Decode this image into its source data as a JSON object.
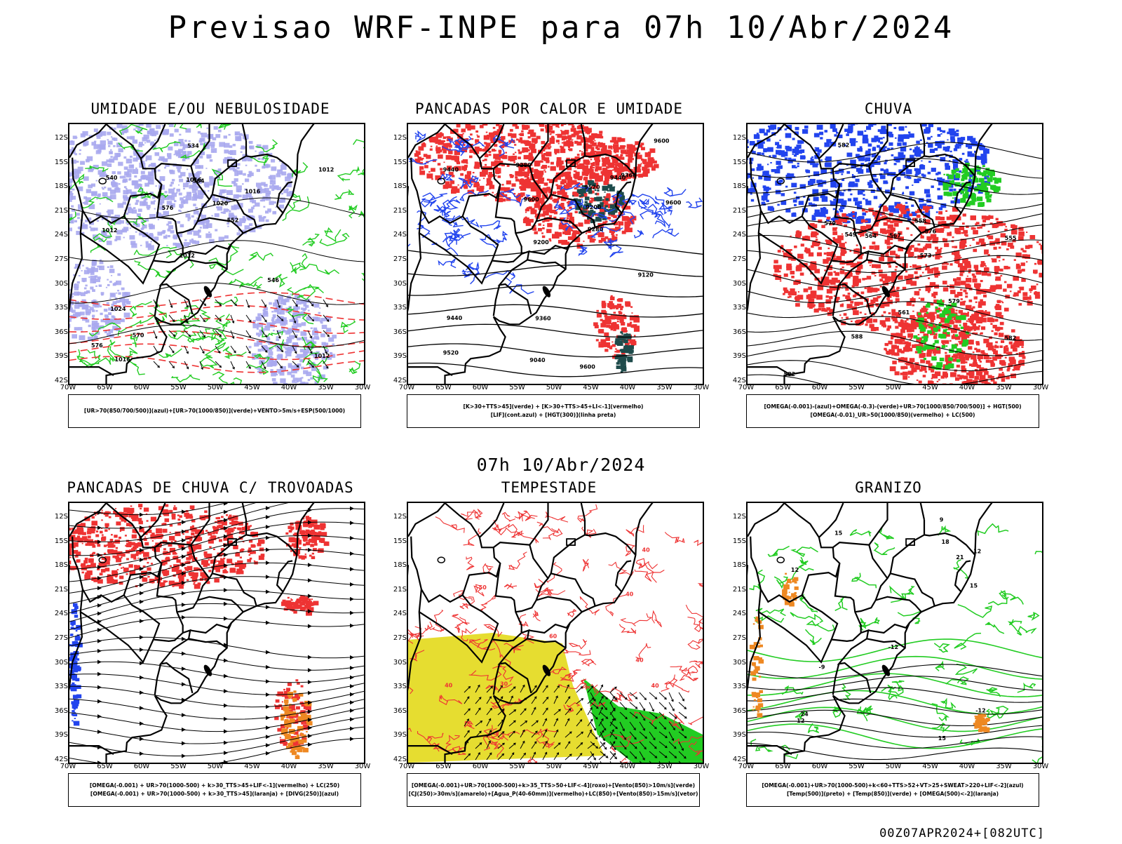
{
  "title": "Previsao WRF-INPE  para 07h 10/Abr/2024",
  "mid_date": "07h 10/Abr/2024",
  "footer": "00Z07APR2024+[082UTC]",
  "axes": {
    "lat_labels": [
      "12S",
      "15S",
      "18S",
      "21S",
      "24S",
      "27S",
      "30S",
      "33S",
      "36S",
      "39S",
      "42S"
    ],
    "lon_labels": [
      "70W",
      "65W",
      "60W",
      "55W",
      "50W",
      "45W",
      "40W",
      "35W",
      "30W"
    ]
  },
  "colors": {
    "blue_shade": "#a9a9ee",
    "green": "#22cc22",
    "red": "#ee3333",
    "yellow": "#e6dd30",
    "dark_teal": "#1e4b4b",
    "orange": "#ee8822",
    "purple": "#cc22cc",
    "blue": "#2244ee"
  },
  "panels": [
    {
      "title": "UMIDADE E/OU NEBULOSIDADE",
      "legend": [
        "[UR>70(850/700/500)](azul)+[UR>70(1000/850)](verde)+VENTO>5m/s+ESP(500/1000)"
      ],
      "contour_labels": [
        "1012",
        "1012",
        "1012",
        "1012",
        "1016",
        "1016",
        "1016",
        "1020",
        "1024",
        "576",
        "576",
        "570",
        "564",
        "552",
        "546",
        "540",
        "534"
      ]
    },
    {
      "title": "PANCADAS POR CALOR E UMIDADE",
      "legend": [
        "[K>30+TTS>45](verde) + [K>30+TTS>45+LI<-1](vermelho)",
        "[LIF](cont.azul) + [HGT(300)](linha preta)"
      ],
      "contour_labels": [
        "9600",
        "9600",
        "9600",
        "9600",
        "9520",
        "9520",
        "9440",
        "9440",
        "9440",
        "9360",
        "9360",
        "9280",
        "9280",
        "9200",
        "9200",
        "9120",
        "9040"
      ]
    },
    {
      "title": "CHUVA",
      "legend": [
        "[OMEGA(-0.001)-(azul)+OMEGA(-0.3)-(verde)+UR>70(1000/850/700/500)] + HGT(500)",
        "[OMEGA(-0.01)_UR>50(1000/850)(vermelho) + LC(500)"
      ],
      "contour_labels": [
        "582",
        "582",
        "582",
        "579",
        "579",
        "576",
        "573",
        "567",
        "564",
        "561",
        "558",
        "555",
        "549",
        "588"
      ]
    },
    {
      "title": "PANCADAS DE CHUVA C/ TROVOADAS",
      "legend": [
        "[OMEGA(-0.001) + UR>70(1000-500) + k>30_TTS>45+LIF<-1](vermelho) + LC(250)",
        "[OMEGA(-0.001) + UR>70(1000-500) + k>30_TTS>45](laranja) + [DIVG(250)](azul)"
      ],
      "contour_labels": []
    },
    {
      "title": "TEMPESTADE",
      "legend": [
        "[OMEGA(-0.001)+UR>70(1000-500)+k>35_TTS>50+LIF<-4](roxo)+[Vento(850)>10m/s](verde)",
        "[CJ(250)>30m/s](amarelo)+[Agua_P(40-60mm)](vermelho)+LC(850)+[Vento(850)>15m/s](vetor)"
      ],
      "contour_labels": [
        "40",
        "40",
        "50",
        "40",
        "40",
        "30",
        "40",
        "60"
      ]
    },
    {
      "title": "GRANIZO",
      "legend": [
        "[OMEGA(-0.001)+UR>70(1000-500)+k<60+TTS>52+VT>25+SWEAT>220+LIF<-2](azul)",
        "[Temp(500)](preto) + [Temp(850)](verde) + [OMEGA(500)<-2](laranja)"
      ],
      "contour_labels": [
        "15",
        "15",
        "15",
        "12",
        "12",
        "12",
        "-12",
        "-12",
        "18",
        "21",
        "24",
        "9",
        "-9"
      ]
    }
  ]
}
